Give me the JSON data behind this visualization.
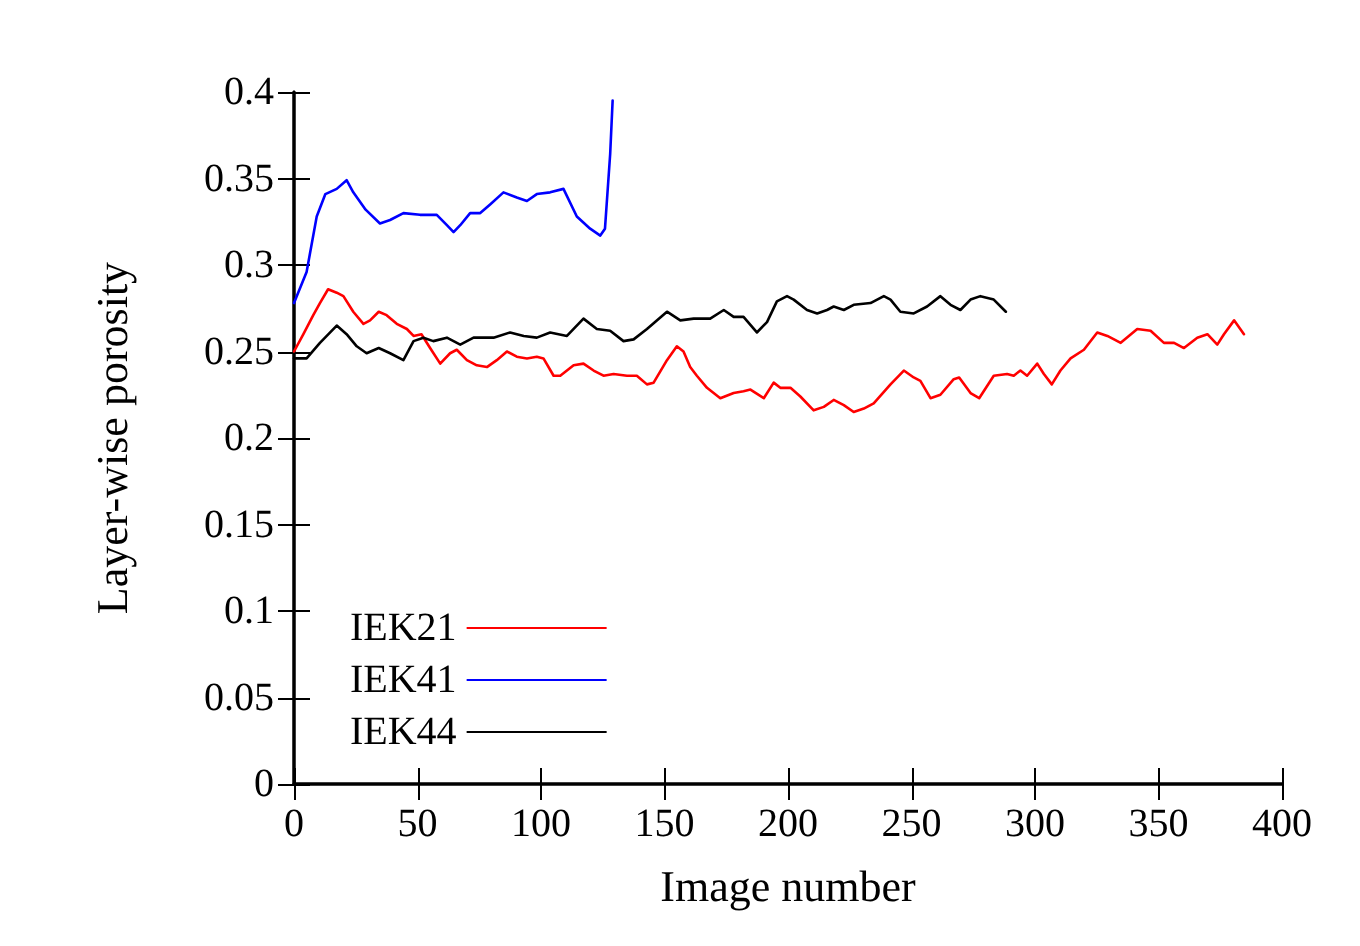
{
  "chart_data": {
    "type": "line",
    "xlabel": "Image number",
    "ylabel": "Layer-wise porosity",
    "xlim": [
      0,
      400
    ],
    "xticks": [
      0,
      50,
      100,
      150,
      200,
      250,
      300,
      350,
      400
    ],
    "ylim": [
      0,
      0.4
    ],
    "yticks": [
      0,
      0.05,
      0.1,
      0.15,
      0.2,
      0.25,
      0.3,
      0.35,
      0.4
    ],
    "grid": false,
    "legend": "bottom left",
    "marker": "none",
    "line_style": "solid",
    "series": [
      {
        "name": "IEK21",
        "color": "#ff0000",
        "x": [
          0,
          3.8,
          7.8,
          10.5,
          13.8,
          17.3,
          20,
          24,
          28.1,
          30.8,
          34.3,
          37.5,
          41.6,
          45.7,
          48.4,
          51.6,
          55.1,
          59.2,
          63.2,
          65.9,
          70,
          74,
          78.1,
          82.1,
          86.2,
          90.2,
          94.3,
          98.3,
          101,
          105.1,
          107.8,
          113.2,
          117.2,
          121.3,
          125.3,
          129.4,
          134.8,
          138.8,
          142.9,
          145.6,
          151,
          155,
          157.7,
          160.4,
          163.1,
          167.2,
          172.6,
          178,
          182,
          184.8,
          190.2,
          194.2,
          196.9,
          201,
          205,
          210.4,
          214.5,
          218.5,
          222.6,
          226.6,
          230.7,
          234.7,
          241.5,
          246.9,
          250.9,
          253.6,
          257.7,
          261.7,
          267.1,
          269.3,
          273.9,
          277.4,
          283.3,
          288.7,
          291.4,
          294.1,
          296.8,
          300.9,
          303.6,
          306.8,
          310.3,
          314.4,
          319.8,
          325.2,
          329.3,
          334.7,
          341.4,
          346.8,
          352.2,
          356.3,
          360.3,
          365.7,
          369.8,
          373.8,
          376.5,
          380.6,
          384.6
        ],
        "values": [
          0.25,
          0.26,
          0.271,
          0.278,
          0.286,
          0.284,
          0.282,
          0.273,
          0.266,
          0.268,
          0.273,
          0.271,
          0.266,
          0.263,
          0.259,
          0.26,
          0.252,
          0.243,
          0.249,
          0.251,
          0.245,
          0.242,
          0.241,
          0.245,
          0.25,
          0.247,
          0.246,
          0.247,
          0.246,
          0.236,
          0.236,
          0.242,
          0.243,
          0.239,
          0.236,
          0.237,
          0.236,
          0.236,
          0.231,
          0.232,
          0.245,
          0.253,
          0.25,
          0.241,
          0.236,
          0.229,
          0.223,
          0.226,
          0.227,
          0.228,
          0.223,
          0.232,
          0.229,
          0.229,
          0.224,
          0.216,
          0.218,
          0.222,
          0.219,
          0.215,
          0.217,
          0.22,
          0.231,
          0.239,
          0.235,
          0.233,
          0.223,
          0.225,
          0.234,
          0.235,
          0.226,
          0.223,
          0.236,
          0.237,
          0.236,
          0.239,
          0.236,
          0.243,
          0.237,
          0.231,
          0.239,
          0.246,
          0.251,
          0.261,
          0.259,
          0.255,
          0.263,
          0.262,
          0.255,
          0.255,
          0.252,
          0.258,
          0.26,
          0.254,
          0.26,
          0.268,
          0.26
        ]
      },
      {
        "name": "IEK41",
        "color": "#0000ff",
        "x": [
          0,
          5.1,
          9.2,
          12.7,
          17.3,
          21.3,
          24,
          29,
          34.8,
          38.9,
          44.3,
          51,
          57.8,
          61.9,
          64.6,
          67.3,
          71.3,
          75.4,
          79.4,
          84.8,
          90.2,
          94.3,
          98.3,
          103.7,
          109.1,
          114.5,
          119.9,
          124,
          125.9,
          128,
          129
        ],
        "values": [
          0.278,
          0.296,
          0.328,
          0.341,
          0.344,
          0.349,
          0.342,
          0.332,
          0.324,
          0.326,
          0.33,
          0.329,
          0.329,
          0.323,
          0.319,
          0.323,
          0.33,
          0.33,
          0.335,
          0.342,
          0.339,
          0.337,
          0.341,
          0.342,
          0.344,
          0.328,
          0.321,
          0.317,
          0.321,
          0.364,
          0.395
        ]
      },
      {
        "name": "IEK44",
        "color": "#000000",
        "x": [
          0,
          5.1,
          10.5,
          17.3,
          21.3,
          25.4,
          29.4,
          34.3,
          38.9,
          44.3,
          48.4,
          52.4,
          56.4,
          61.9,
          67.3,
          72.7,
          80.8,
          87.5,
          93,
          98.3,
          103.7,
          110.5,
          117.2,
          122.6,
          128,
          133.4,
          137.5,
          142.9,
          151,
          156.4,
          161.8,
          168.5,
          174,
          178,
          182,
          187.4,
          191.5,
          195.5,
          199.6,
          202.3,
          207.7,
          211.8,
          215.8,
          218.5,
          222.6,
          226.6,
          233.4,
          238.8,
          241.5,
          245.5,
          250.9,
          256.3,
          261.7,
          265.8,
          269.8,
          273.9,
          277.9,
          283.3,
          288.2
        ],
        "values": [
          0.246,
          0.246,
          0.255,
          0.265,
          0.26,
          0.253,
          0.249,
          0.252,
          0.249,
          0.245,
          0.256,
          0.258,
          0.256,
          0.258,
          0.254,
          0.258,
          0.258,
          0.261,
          0.259,
          0.258,
          0.261,
          0.259,
          0.269,
          0.263,
          0.262,
          0.256,
          0.257,
          0.263,
          0.273,
          0.268,
          0.269,
          0.269,
          0.274,
          0.27,
          0.27,
          0.261,
          0.267,
          0.279,
          0.282,
          0.28,
          0.274,
          0.272,
          0.274,
          0.276,
          0.274,
          0.277,
          0.278,
          0.282,
          0.28,
          0.273,
          0.272,
          0.276,
          0.282,
          0.277,
          0.274,
          0.28,
          0.282,
          0.28,
          0.273
        ]
      }
    ]
  }
}
